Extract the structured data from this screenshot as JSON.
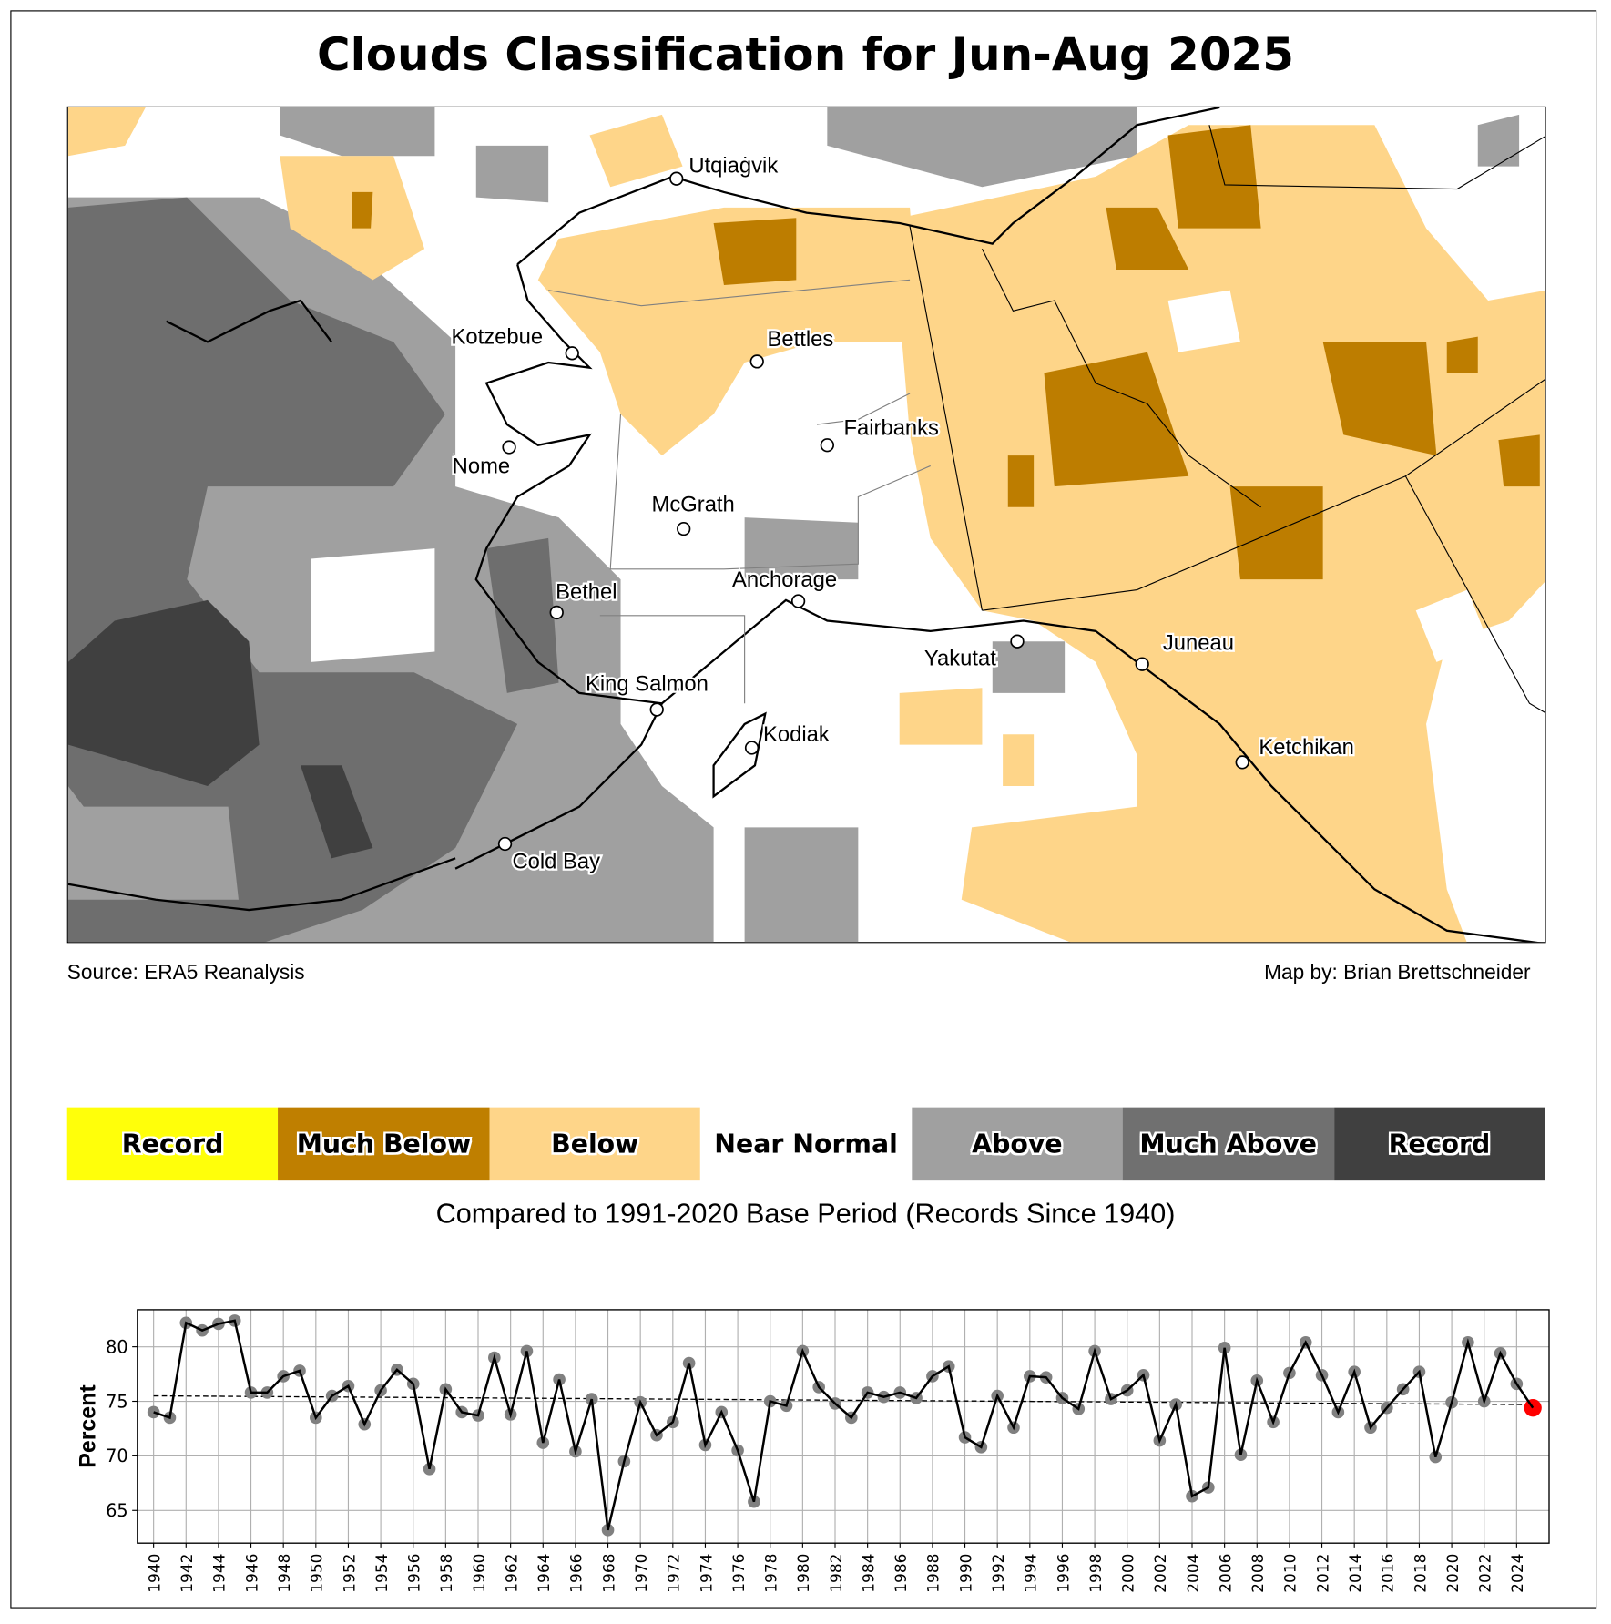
{
  "title": "Clouds Classification for Jun-Aug 2025",
  "source": "Source: ERA5 Reanalysis",
  "credit": "Map by: Brian Brettschneider",
  "legend": [
    {
      "label": "Record",
      "color": "#ffff0a"
    },
    {
      "label": "Much Below",
      "color": "#bf7f00"
    },
    {
      "label": "Below",
      "color": "#fed589"
    },
    {
      "label": "Near Normal",
      "color": "#ffffff"
    },
    {
      "label": "Above",
      "color": "#a0a0a0"
    },
    {
      "label": "Much Above",
      "color": "#707070"
    },
    {
      "label": "Record",
      "color": "#404040"
    }
  ],
  "subtitle": "Compared to 1991-2020 Base Period   (Records Since 1940)",
  "cities": [
    "Utqiaġvik",
    "Kotzebue",
    "Bettles",
    "Nome",
    "Fairbanks",
    "McGrath",
    "Bethel",
    "Anchorage",
    "Yakutat",
    "Juneau",
    "King Salmon",
    "Kodiak",
    "Ketchikan",
    "Cold Bay"
  ],
  "chart_data": {
    "type": "line",
    "title": "",
    "xlabel": "",
    "ylabel": "Percent",
    "xlim": [
      1939,
      2026
    ],
    "ylim": [
      62.0,
      83.4
    ],
    "yticks": [
      65,
      70,
      75,
      80
    ],
    "xticks": [
      1940,
      1942,
      1944,
      1946,
      1948,
      1950,
      1952,
      1954,
      1956,
      1958,
      1960,
      1962,
      1964,
      1966,
      1968,
      1970,
      1972,
      1974,
      1976,
      1978,
      1980,
      1982,
      1984,
      1986,
      1988,
      1990,
      1992,
      1994,
      1996,
      1998,
      2000,
      2002,
      2004,
      2006,
      2008,
      2010,
      2012,
      2014,
      2016,
      2018,
      2020,
      2022,
      2024
    ],
    "grid": true,
    "x_start": 1940,
    "values": [
      74.0,
      73.5,
      82.2,
      81.5,
      82.1,
      82.4,
      75.8,
      75.8,
      77.3,
      77.8,
      73.5,
      75.5,
      76.4,
      72.9,
      76.0,
      77.9,
      76.6,
      68.8,
      76.1,
      74.0,
      73.7,
      79.0,
      73.8,
      79.6,
      71.2,
      77.0,
      70.4,
      75.2,
      63.2,
      69.5,
      74.9,
      71.9,
      73.1,
      78.5,
      71.0,
      74.0,
      70.5,
      65.8,
      75.0,
      74.6,
      79.6,
      76.3,
      74.8,
      73.5,
      75.8,
      75.4,
      75.8,
      75.3,
      77.3,
      78.2,
      71.7,
      70.8,
      75.5,
      72.6,
      77.3,
      77.2,
      75.3,
      74.3,
      79.6,
      75.2,
      76.0,
      77.4,
      71.4,
      74.7,
      66.3,
      67.1,
      79.9,
      70.1,
      76.9,
      73.1,
      77.6,
      80.4,
      77.4,
      74.0,
      77.7,
      72.6,
      74.4,
      76.1,
      77.7,
      69.9,
      74.9,
      80.4,
      75.0,
      79.4,
      76.6,
      74.4
    ],
    "trend": {
      "start": [
        1940,
        75.5
      ],
      "end": [
        2025,
        74.7
      ]
    },
    "highlight": {
      "year": 2025,
      "color": "#ff0000"
    },
    "point_color": "#808080",
    "line_color": "#000000"
  }
}
